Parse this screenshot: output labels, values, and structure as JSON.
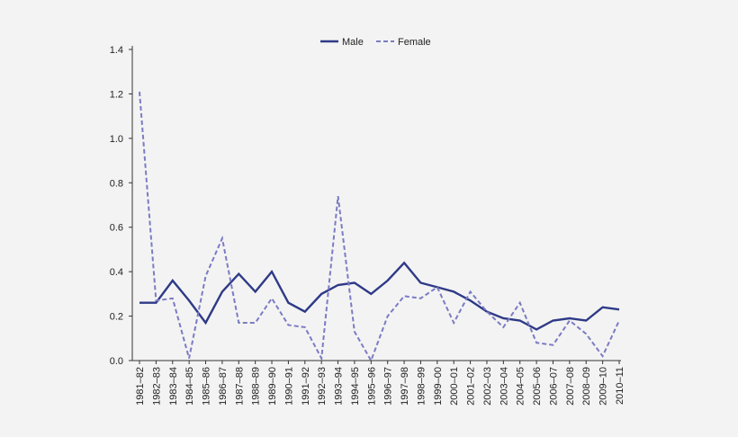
{
  "chart_data": {
    "type": "line",
    "title": "",
    "xlabel": "",
    "ylabel": "",
    "ylim": [
      0,
      1.4
    ],
    "yticks": [
      "0.0",
      "0.2",
      "0.4",
      "0.6",
      "0.8",
      "1.0",
      "1.2",
      "1.4"
    ],
    "grid": false,
    "legend_position": "top-center",
    "categories": [
      "1981–82",
      "1982–83",
      "1983–84",
      "1984–85",
      "1985–86",
      "1986–87",
      "1987–88",
      "1988–89",
      "1989–90",
      "1990–91",
      "1991–92",
      "1992–93",
      "1993–94",
      "1994–95",
      "1995–96",
      "1996–97",
      "1997–98",
      "1998–99",
      "1999–00",
      "2000–01",
      "2001–02",
      "2002–03",
      "2003–04",
      "2004–05",
      "2005–06",
      "2006–07",
      "2007–08",
      "2008–09",
      "2009–10",
      "2010–11"
    ],
    "series": [
      {
        "name": "Male",
        "color": "#2e3a87",
        "style": "solid",
        "values": [
          0.26,
          0.26,
          0.36,
          0.27,
          0.17,
          0.31,
          0.39,
          0.31,
          0.4,
          0.26,
          0.22,
          0.3,
          0.34,
          0.35,
          0.3,
          0.36,
          0.44,
          0.35,
          0.33,
          0.31,
          0.27,
          0.22,
          0.19,
          0.18,
          0.14,
          0.18,
          0.19,
          0.18,
          0.24,
          0.23
        ]
      },
      {
        "name": "Female",
        "color": "#7b7bc4",
        "style": "dashed",
        "values": [
          1.21,
          0.27,
          0.28,
          0.01,
          0.38,
          0.55,
          0.17,
          0.17,
          0.28,
          0.16,
          0.15,
          0.01,
          0.74,
          0.13,
          0.0,
          0.2,
          0.29,
          0.28,
          0.33,
          0.17,
          0.31,
          0.22,
          0.15,
          0.26,
          0.08,
          0.07,
          0.18,
          0.12,
          0.02,
          0.18
        ]
      }
    ]
  }
}
